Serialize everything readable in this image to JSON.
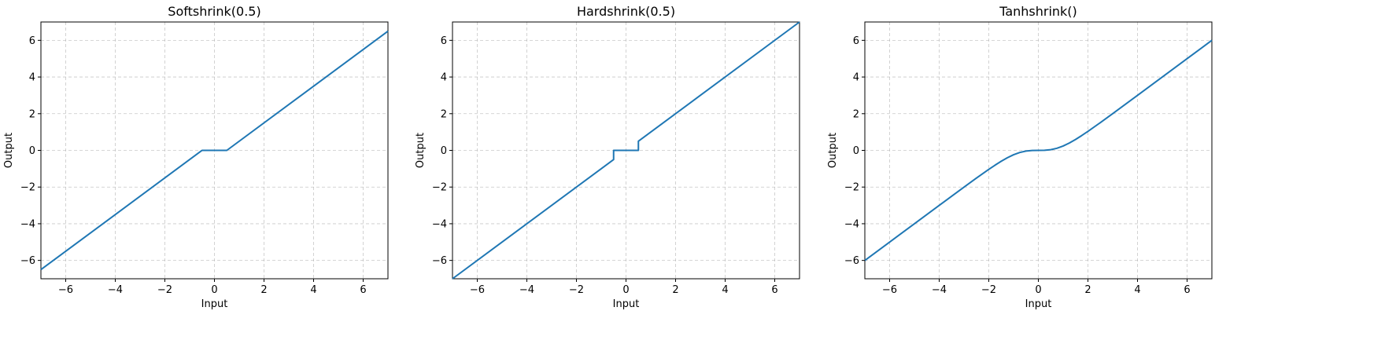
{
  "figure": {
    "line_color": "#1f77b4",
    "grid_color": "#b0b0b0"
  },
  "chart_data": [
    {
      "type": "line",
      "title": "Softshrink(0.5)",
      "xlabel": "Input",
      "ylabel": "Output",
      "xlim": [
        -7,
        7
      ],
      "ylim": [
        -7,
        7
      ],
      "xticks": [
        -6,
        -4,
        -2,
        0,
        2,
        4,
        6
      ],
      "yticks": [
        -6,
        -4,
        -2,
        0,
        2,
        4,
        6
      ],
      "xtick_labels": [
        "−6",
        "−4",
        "−2",
        "0",
        "2",
        "4",
        "6"
      ],
      "ytick_labels": [
        "−6",
        "−4",
        "−2",
        "0",
        "2",
        "4",
        "6"
      ],
      "grid": true,
      "series": [
        {
          "x": [
            -7,
            -0.5,
            0.5,
            7
          ],
          "y": [
            -6.5,
            0,
            0,
            6.5
          ]
        }
      ]
    },
    {
      "type": "line",
      "title": "Hardshrink(0.5)",
      "xlabel": "Input",
      "ylabel": "Output",
      "xlim": [
        -7,
        7
      ],
      "ylim": [
        -7,
        7
      ],
      "xticks": [
        -6,
        -4,
        -2,
        0,
        2,
        4,
        6
      ],
      "yticks": [
        -6,
        -4,
        -2,
        0,
        2,
        4,
        6
      ],
      "xtick_labels": [
        "−6",
        "−4",
        "−2",
        "0",
        "2",
        "4",
        "6"
      ],
      "ytick_labels": [
        "−6",
        "−4",
        "−2",
        "0",
        "2",
        "4",
        "6"
      ],
      "grid": true,
      "series": [
        {
          "x": [
            -7,
            -0.5,
            -0.5,
            0.5,
            0.5,
            7
          ],
          "y": [
            -7,
            -0.5,
            0,
            0,
            0.5,
            7
          ]
        }
      ]
    },
    {
      "type": "line",
      "title": "Tanhshrink()",
      "xlabel": "Input",
      "ylabel": "Output",
      "xlim": [
        -7,
        7
      ],
      "ylim": [
        -7,
        7
      ],
      "xticks": [
        -6,
        -4,
        -2,
        0,
        2,
        4,
        6
      ],
      "yticks": [
        -6,
        -4,
        -2,
        0,
        2,
        4,
        6
      ],
      "xtick_labels": [
        "−6",
        "−4",
        "−2",
        "0",
        "2",
        "4",
        "6"
      ],
      "ytick_labels": [
        "−6",
        "−4",
        "−2",
        "0",
        "2",
        "4",
        "6"
      ],
      "grid": true,
      "series": [
        {
          "x": [
            -7,
            -6,
            -5,
            -4,
            -3.5,
            -3,
            -2.5,
            -2,
            -1.75,
            -1.5,
            -1.25,
            -1,
            -0.75,
            -0.5,
            -0.25,
            0,
            0.25,
            0.5,
            0.75,
            1,
            1.25,
            1.5,
            1.75,
            2,
            2.5,
            3,
            3.5,
            4,
            5,
            6,
            7
          ],
          "y": [
            -6,
            -5,
            -4,
            -3.001,
            -2.502,
            -2.005,
            -1.513,
            -1.036,
            -0.809,
            -0.595,
            -0.402,
            -0.238,
            -0.115,
            -0.038,
            -0.005,
            0,
            0.005,
            0.038,
            0.115,
            0.238,
            0.402,
            0.595,
            0.809,
            1.036,
            1.513,
            2.005,
            2.502,
            3.001,
            4,
            5,
            6
          ]
        }
      ]
    }
  ]
}
